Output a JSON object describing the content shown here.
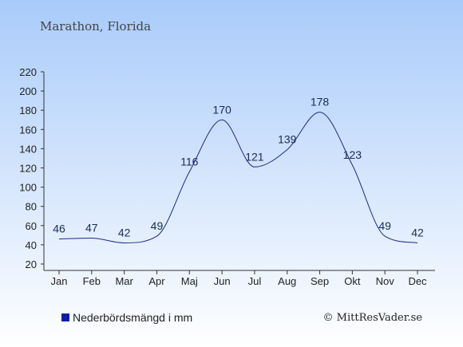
{
  "chart_data": {
    "type": "line",
    "title": "Marathon, Florida",
    "categories": [
      "Jan",
      "Feb",
      "Mar",
      "Apr",
      "Maj",
      "Jun",
      "Jul",
      "Aug",
      "Sep",
      "Okt",
      "Nov",
      "Dec"
    ],
    "series": [
      {
        "name": "Nederbördsmängd i mm",
        "values": [
          46,
          47,
          42,
          49,
          116,
          170,
          121,
          139,
          178,
          123,
          49,
          42
        ]
      }
    ],
    "yticks": [
      20,
      40,
      60,
      80,
      100,
      120,
      140,
      160,
      180,
      200,
      220
    ],
    "ylim": [
      20,
      220
    ],
    "grid": false,
    "legend_position": "bottom-left",
    "line_color": "#1a2a8a",
    "legend_color": "#0d1fa8",
    "background_top": "#a9cbfa",
    "background_bottom": "#ffffff"
  },
  "credit": "© MittResVader.se"
}
